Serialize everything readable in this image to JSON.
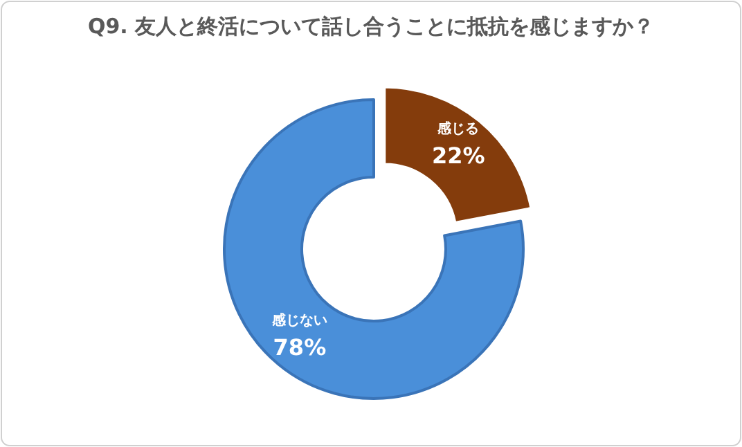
{
  "chart_data": {
    "type": "donut",
    "title": "Q9. 友人と終活について話し合うことに抵抗を感じますか？",
    "categories": [
      "感じる",
      "感じない"
    ],
    "values": [
      22,
      78
    ],
    "colors": [
      "#843c0c",
      "#4a8fd9"
    ],
    "value_labels": [
      "22%",
      "78%"
    ]
  }
}
